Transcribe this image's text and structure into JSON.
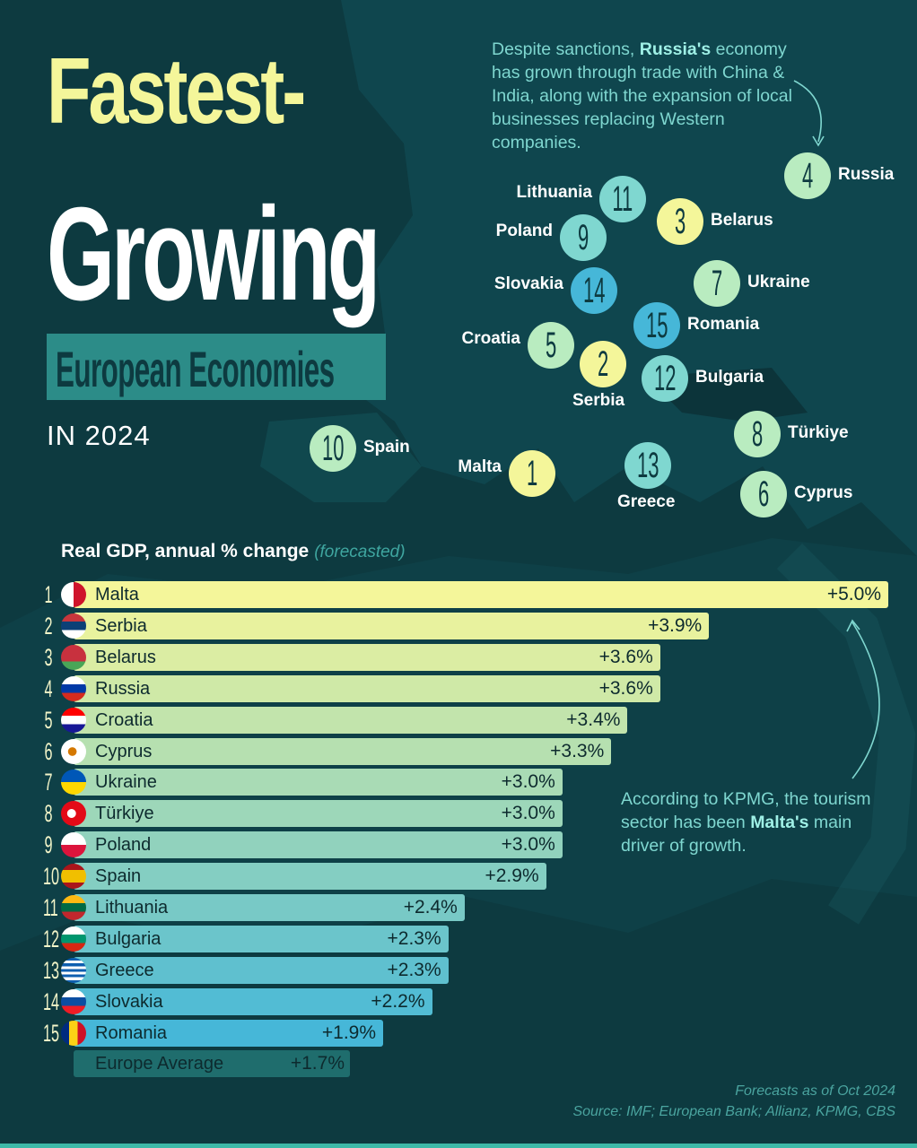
{
  "title": {
    "line1": "Fastest-",
    "line2": "Growing",
    "subtitle": "European Economies",
    "year": "IN 2024"
  },
  "notes": {
    "russia": {
      "prefix": "Despite sanctions, ",
      "bold": "Russia's",
      "rest": " economy has grown through trade with China & India, along with the expansion of local businesses replacing Western companies."
    },
    "malta": {
      "prefix": "According to KPMG, the tourism sector has been ",
      "bold": "Malta's",
      "rest": " main driver of growth."
    }
  },
  "map_markers": [
    {
      "rank": "4",
      "country": "Russia"
    },
    {
      "rank": "11",
      "country": "Lithuania"
    },
    {
      "rank": "3",
      "country": "Belarus"
    },
    {
      "rank": "9",
      "country": "Poland"
    },
    {
      "rank": "14",
      "country": "Slovakia"
    },
    {
      "rank": "7",
      "country": "Ukraine"
    },
    {
      "rank": "15",
      "country": "Romania"
    },
    {
      "rank": "5",
      "country": "Croatia"
    },
    {
      "rank": "2",
      "country": "Serbia"
    },
    {
      "rank": "12",
      "country": "Bulgaria"
    },
    {
      "rank": "8",
      "country": "Türkiye"
    },
    {
      "rank": "10",
      "country": "Spain"
    },
    {
      "rank": "1",
      "country": "Malta"
    },
    {
      "rank": "13",
      "country": "Greece"
    },
    {
      "rank": "6",
      "country": "Cyprus"
    }
  ],
  "chart_data": {
    "type": "bar",
    "orientation": "horizontal",
    "title": "Real GDP, annual % change",
    "title_note": "(forecasted)",
    "xlim": [
      0,
      5.0
    ],
    "rows": [
      {
        "rank": "1",
        "country": "Malta",
        "value": 5.0,
        "label": "+5.0%"
      },
      {
        "rank": "2",
        "country": "Serbia",
        "value": 3.9,
        "label": "+3.9%"
      },
      {
        "rank": "3",
        "country": "Belarus",
        "value": 3.6,
        "label": "+3.6%"
      },
      {
        "rank": "4",
        "country": "Russia",
        "value": 3.6,
        "label": "+3.6%"
      },
      {
        "rank": "5",
        "country": "Croatia",
        "value": 3.4,
        "label": "+3.4%"
      },
      {
        "rank": "6",
        "country": "Cyprus",
        "value": 3.3,
        "label": "+3.3%"
      },
      {
        "rank": "7",
        "country": "Ukraine",
        "value": 3.0,
        "label": "+3.0%"
      },
      {
        "rank": "8",
        "country": "Türkiye",
        "value": 3.0,
        "label": "+3.0%"
      },
      {
        "rank": "9",
        "country": "Poland",
        "value": 3.0,
        "label": "+3.0%"
      },
      {
        "rank": "10",
        "country": "Spain",
        "value": 2.9,
        "label": "+2.9%"
      },
      {
        "rank": "11",
        "country": "Lithuania",
        "value": 2.4,
        "label": "+2.4%"
      },
      {
        "rank": "12",
        "country": "Bulgaria",
        "value": 2.3,
        "label": "+2.3%"
      },
      {
        "rank": "13",
        "country": "Greece",
        "value": 2.3,
        "label": "+2.3%"
      },
      {
        "rank": "14",
        "country": "Slovakia",
        "value": 2.2,
        "label": "+2.2%"
      },
      {
        "rank": "15",
        "country": "Romania",
        "value": 1.9,
        "label": "+1.9%"
      }
    ],
    "average": {
      "country": "Europe Average",
      "value": 1.7,
      "label": "+1.7%"
    }
  },
  "colors": {
    "background": "#0d3a40",
    "title_yellow": "#f4f69a",
    "bar_top": "#f4f69a",
    "bar_bottom": "#46b7d8",
    "average_bar": "#1f6d6d"
  },
  "footer": {
    "forecast": "Forecasts as of Oct 2024",
    "source": "Source: IMF; European Bank; Allianz, KPMG, CBS"
  }
}
